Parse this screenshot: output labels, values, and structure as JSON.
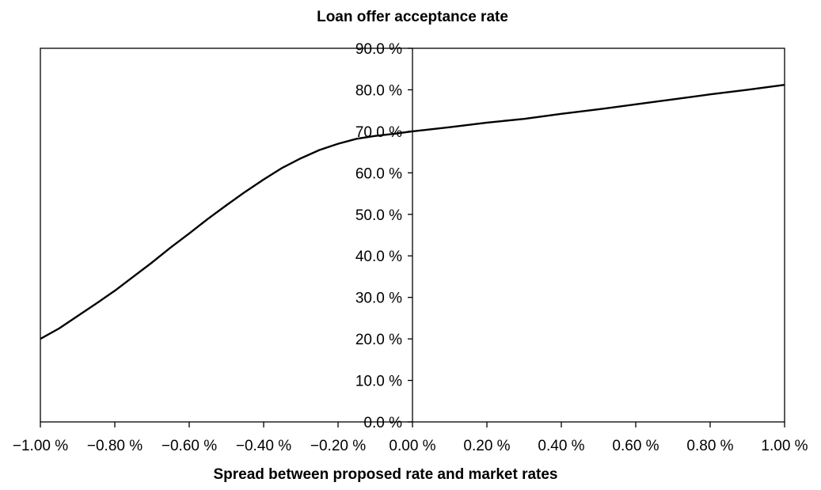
{
  "chart_data": {
    "type": "line",
    "title": "Loan offer acceptance rate",
    "xlabel": "Spread between proposed rate and market rates",
    "ylabel": "",
    "xlim": [
      -1.0,
      1.0
    ],
    "ylim": [
      0,
      90
    ],
    "x_ticks": [
      -1.0,
      -0.8,
      -0.6,
      -0.4,
      -0.2,
      0.0,
      0.2,
      0.4,
      0.6,
      0.8,
      1.0
    ],
    "x_tick_labels": [
      "−1.00 %",
      "−0.80 %",
      "−0.60 %",
      "−0.40 %",
      "−0.20 %",
      "0.00 %",
      "0.20 %",
      "0.40 %",
      "0.60 %",
      "0.80 %",
      "1.00 %"
    ],
    "y_ticks": [
      0,
      10,
      20,
      30,
      40,
      50,
      60,
      70,
      80,
      90
    ],
    "y_tick_labels": [
      "0.0 %",
      "10.0 %",
      "20.0 %",
      "30.0 %",
      "40.0 %",
      "50.0 %",
      "60.0 %",
      "70.0 %",
      "80.0 %",
      "90.0 %"
    ],
    "grid": false,
    "legend": "none",
    "series": [
      {
        "x": [
          -1.0,
          -0.95,
          -0.9,
          -0.85,
          -0.8,
          -0.75,
          -0.7,
          -0.65,
          -0.6,
          -0.55,
          -0.5,
          -0.45,
          -0.4,
          -0.35,
          -0.3,
          -0.25,
          -0.2,
          -0.15,
          -0.1,
          -0.05,
          0.0,
          0.1,
          0.2,
          0.3,
          0.4,
          0.5,
          0.6,
          0.7,
          0.8,
          0.9,
          1.0
        ],
        "y": [
          20.0,
          22.5,
          25.5,
          28.5,
          31.6,
          35.0,
          38.4,
          42.0,
          45.4,
          48.9,
          52.2,
          55.4,
          58.4,
          61.2,
          63.5,
          65.5,
          67.0,
          68.2,
          68.9,
          69.4,
          70.0,
          71.0,
          72.1,
          73.0,
          74.2,
          75.3,
          76.5,
          77.7,
          78.9,
          80.0,
          81.2
        ]
      }
    ],
    "line_color": "#000000"
  }
}
